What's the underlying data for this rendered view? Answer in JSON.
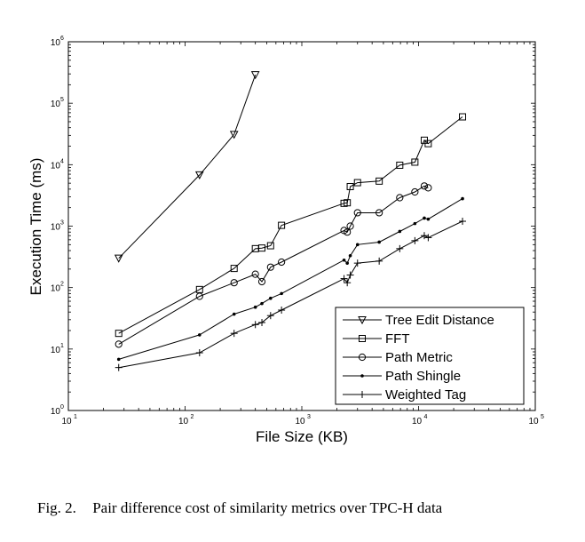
{
  "chart_data": {
    "type": "line",
    "xscale": "log",
    "yscale": "log",
    "xlabel": "File Size (KB)",
    "ylabel": "Execution Time (ms)",
    "xlim": [
      10,
      100000
    ],
    "ylim": [
      1,
      1000000
    ],
    "xticks": [
      {
        "base": "10",
        "exp": "1"
      },
      {
        "base": "10",
        "exp": "2"
      },
      {
        "base": "10",
        "exp": "3"
      },
      {
        "base": "10",
        "exp": "4"
      },
      {
        "base": "10",
        "exp": "5"
      }
    ],
    "yticks": [
      {
        "base": "10",
        "exp": "0"
      },
      {
        "base": "10",
        "exp": "1"
      },
      {
        "base": "10",
        "exp": "2"
      },
      {
        "base": "10",
        "exp": "3"
      },
      {
        "base": "10",
        "exp": "4"
      },
      {
        "base": "10",
        "exp": "5"
      },
      {
        "base": "10",
        "exp": "6"
      }
    ],
    "grid": false,
    "legend_position": "bottom-right",
    "series": [
      {
        "name": "Tree Edit Distance",
        "marker": "triangle-down",
        "x": [
          27,
          133,
          263,
          400
        ],
        "y": [
          300,
          6800,
          31000,
          290000
        ]
      },
      {
        "name": "FFT",
        "marker": "square",
        "x": [
          27,
          133,
          263,
          400,
          455,
          540,
          670,
          2300,
          2450,
          2600,
          3000,
          4600,
          6900,
          9300,
          11200,
          12100,
          23800
        ],
        "y": [
          18,
          93,
          205,
          430,
          440,
          480,
          1030,
          2350,
          2400,
          4400,
          5100,
          5400,
          9800,
          11000,
          25000,
          22000,
          60000
        ]
      },
      {
        "name": "Path Metric",
        "marker": "circle",
        "x": [
          27,
          133,
          263,
          400,
          455,
          540,
          670,
          2300,
          2450,
          2600,
          3000,
          4600,
          6900,
          9300,
          11200,
          12100
        ],
        "y": [
          12,
          72,
          120,
          165,
          125,
          215,
          260,
          850,
          800,
          1000,
          1650,
          1650,
          2900,
          3600,
          4500,
          4200
        ]
      },
      {
        "name": "Path Shingle",
        "marker": "dot",
        "x": [
          27,
          133,
          263,
          400,
          455,
          540,
          670,
          2300,
          2450,
          2600,
          3000,
          4600,
          6900,
          9300,
          11200,
          12100,
          23800
        ],
        "y": [
          6.8,
          17,
          37,
          48,
          55,
          67,
          80,
          280,
          250,
          330,
          500,
          550,
          820,
          1100,
          1350,
          1300,
          2800
        ]
      },
      {
        "name": "Weighted Tag",
        "marker": "plus",
        "x": [
          27,
          133,
          263,
          400,
          455,
          540,
          670,
          2300,
          2450,
          2600,
          3000,
          4600,
          6900,
          9300,
          11200,
          12100,
          23800
        ],
        "y": [
          5,
          8.7,
          18,
          25,
          27,
          35,
          43,
          140,
          120,
          160,
          250,
          270,
          430,
          580,
          700,
          650,
          1200
        ]
      }
    ]
  },
  "caption": {
    "label": "Fig. 2.",
    "text": "Pair difference cost of similarity metrics over TPC-H data"
  }
}
